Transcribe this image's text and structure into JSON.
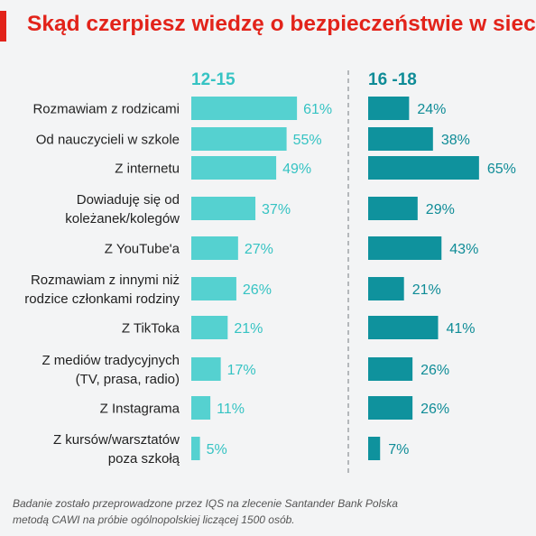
{
  "title": "Skąd czerpiesz wiedzę o bezpieczeństwie w sieci?",
  "footnote": {
    "line1": "Badanie zostało przeprowadzone przez IQS na zlecenie Santander Bank Polska",
    "line2": "metodą CAWI na próbie ogólnopolskiej liczącej 1500 osób."
  },
  "colors": {
    "accent": "#e2231a",
    "series_12_15": "#55d1d0",
    "series_16_18": "#0f929d",
    "label_12_15": "#35c3c3",
    "label_16_18": "#0f8c97"
  },
  "chart_data": {
    "type": "bar",
    "orientation": "horizontal",
    "value_unit": "%",
    "categories": [
      [
        "Rozmawiam z rodzicami"
      ],
      [
        "Od nauczycieli w szkole"
      ],
      [
        "Z internetu"
      ],
      [
        "Dowiaduję się od",
        "koleżanek/kolegów"
      ],
      [
        "Z YouTube'a"
      ],
      [
        "Rozmawiam z innymi niż",
        "rodzice członkami rodziny"
      ],
      [
        "Z TikToka"
      ],
      [
        "Z mediów tradycyjnych",
        "(TV, prasa, radio)"
      ],
      [
        "Z Instagrama"
      ],
      [
        "Z kursów/warsztatów",
        "poza szkołą"
      ]
    ],
    "series": [
      {
        "name": "12-15",
        "values": [
          61,
          55,
          49,
          37,
          27,
          26,
          21,
          17,
          11,
          5
        ]
      },
      {
        "name": "16 -18",
        "values": [
          24,
          38,
          65,
          29,
          43,
          21,
          41,
          26,
          26,
          7
        ]
      }
    ],
    "grid": false,
    "separator": "dashed vertical line between series"
  }
}
